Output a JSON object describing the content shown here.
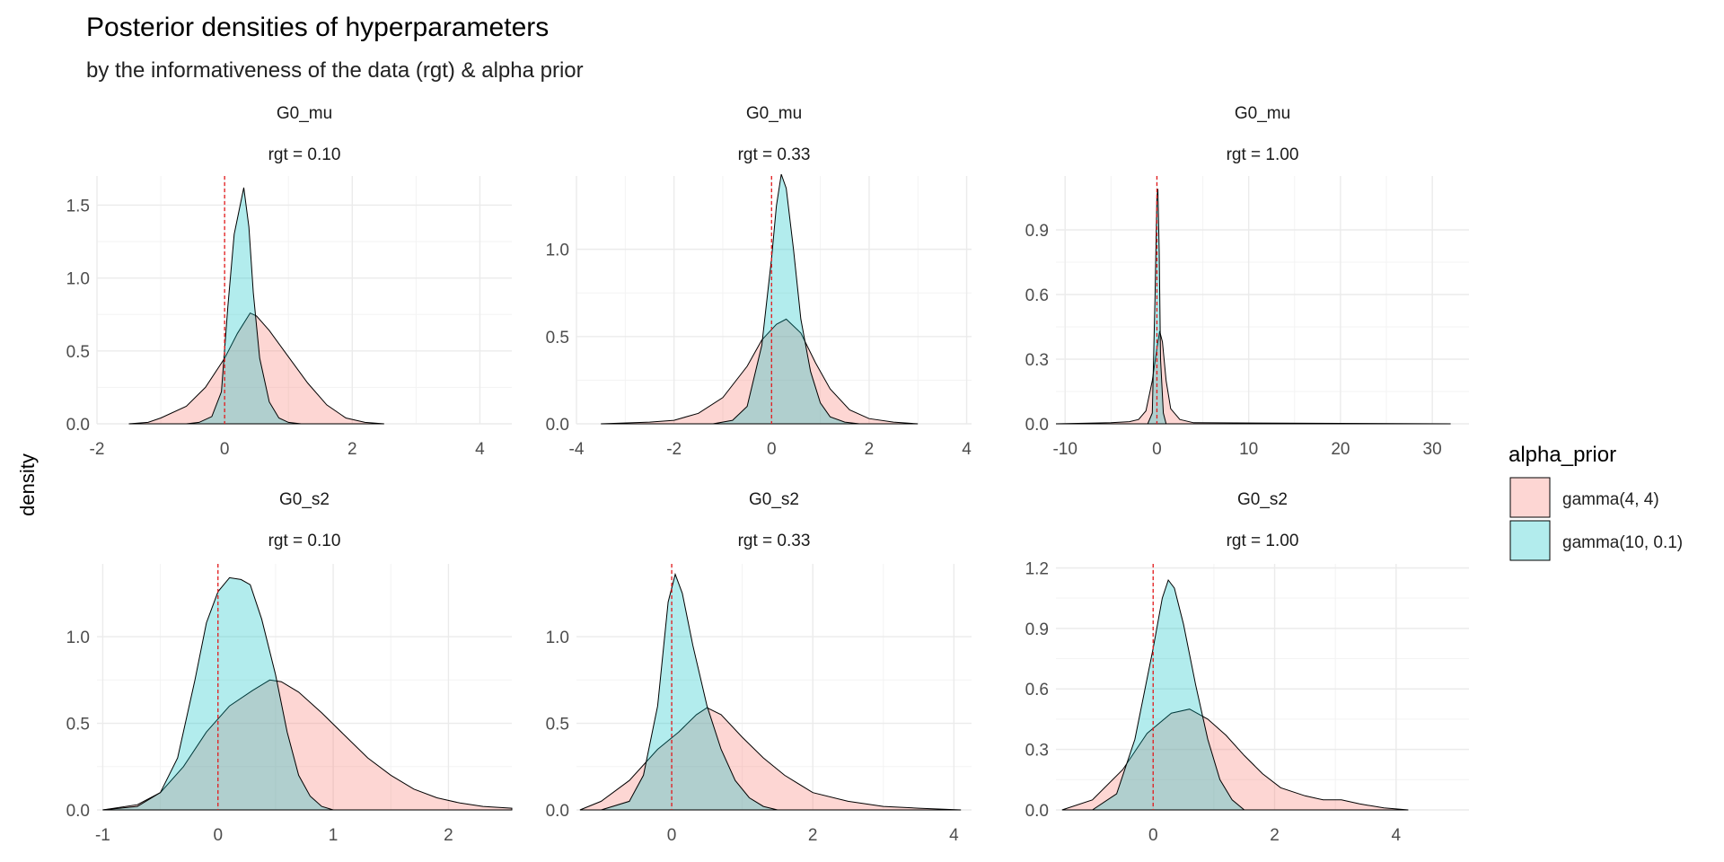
{
  "title": "Posterior densities of hyperparameters",
  "subtitle": "by the informativeness of the data (rgt) & alpha prior",
  "ylabel": "density",
  "legend": {
    "title": "alpha_prior",
    "placement": "right",
    "entries": [
      {
        "label": "gamma(4, 4)",
        "color": "#F8766D"
      },
      {
        "label": "gamma(10, 0.1)",
        "color": "#00BFC4"
      }
    ]
  },
  "colors": {
    "ref_line": "#E41A1C",
    "grid": "#EBEBEB",
    "outline": "#000000"
  },
  "chart_data": [
    {
      "type": "area",
      "facet": "G0_mu",
      "strip": "rgt = 0.10",
      "xlim": [
        -2,
        4.5
      ],
      "ylim": [
        0,
        1.7
      ],
      "xticks": [
        -2,
        0,
        2,
        4
      ],
      "yticks": [
        0.0,
        0.5,
        1.0,
        1.5
      ],
      "ref_x": 0,
      "grid": true,
      "series": [
        {
          "name": "gamma(4, 4)",
          "points": [
            [
              -1.5,
              0
            ],
            [
              -1.2,
              0.01
            ],
            [
              -1.0,
              0.04
            ],
            [
              -0.6,
              0.12
            ],
            [
              -0.3,
              0.25
            ],
            [
              0.0,
              0.45
            ],
            [
              0.2,
              0.62
            ],
            [
              0.4,
              0.76
            ],
            [
              0.5,
              0.74
            ],
            [
              0.7,
              0.64
            ],
            [
              1.0,
              0.46
            ],
            [
              1.3,
              0.28
            ],
            [
              1.6,
              0.13
            ],
            [
              1.9,
              0.04
            ],
            [
              2.2,
              0.01
            ],
            [
              2.5,
              0
            ]
          ]
        },
        {
          "name": "gamma(10, 0.1)",
          "points": [
            [
              -0.6,
              0
            ],
            [
              -0.4,
              0.01
            ],
            [
              -0.2,
              0.05
            ],
            [
              -0.05,
              0.22
            ],
            [
              0.05,
              0.8
            ],
            [
              0.15,
              1.3
            ],
            [
              0.22,
              1.45
            ],
            [
              0.3,
              1.62
            ],
            [
              0.38,
              1.35
            ],
            [
              0.45,
              0.9
            ],
            [
              0.55,
              0.45
            ],
            [
              0.7,
              0.15
            ],
            [
              0.85,
              0.04
            ],
            [
              1.0,
              0.01
            ],
            [
              1.2,
              0
            ]
          ]
        }
      ]
    },
    {
      "type": "area",
      "facet": "G0_mu",
      "strip": "rgt = 0.33",
      "xlim": [
        -4,
        4.1
      ],
      "ylim": [
        0,
        1.42
      ],
      "xticks": [
        -4,
        -2,
        0,
        2,
        4
      ],
      "yticks": [
        0.0,
        0.5,
        1.0
      ],
      "ref_x": 0,
      "grid": true,
      "series": [
        {
          "name": "gamma(4, 4)",
          "points": [
            [
              -3.5,
              0
            ],
            [
              -2.5,
              0.01
            ],
            [
              -2.0,
              0.02
            ],
            [
              -1.5,
              0.06
            ],
            [
              -1.0,
              0.15
            ],
            [
              -0.5,
              0.33
            ],
            [
              -0.2,
              0.48
            ],
            [
              0.1,
              0.57
            ],
            [
              0.3,
              0.6
            ],
            [
              0.6,
              0.52
            ],
            [
              0.9,
              0.35
            ],
            [
              1.2,
              0.2
            ],
            [
              1.6,
              0.08
            ],
            [
              2.0,
              0.03
            ],
            [
              2.5,
              0.01
            ],
            [
              3.0,
              0
            ]
          ]
        },
        {
          "name": "gamma(10, 0.1)",
          "points": [
            [
              -1.2,
              0
            ],
            [
              -0.8,
              0.02
            ],
            [
              -0.5,
              0.1
            ],
            [
              -0.2,
              0.45
            ],
            [
              0.0,
              0.95
            ],
            [
              0.1,
              1.25
            ],
            [
              0.2,
              1.43
            ],
            [
              0.3,
              1.35
            ],
            [
              0.45,
              1.0
            ],
            [
              0.6,
              0.6
            ],
            [
              0.8,
              0.3
            ],
            [
              1.0,
              0.12
            ],
            [
              1.2,
              0.04
            ],
            [
              1.5,
              0.01
            ],
            [
              1.8,
              0
            ]
          ]
        }
      ]
    },
    {
      "type": "area",
      "facet": "G0_mu",
      "strip": "rgt = 1.00",
      "xlim": [
        -11,
        34
      ],
      "ylim": [
        0,
        1.15
      ],
      "xticks": [
        -10,
        0,
        10,
        20,
        30
      ],
      "yticks": [
        0.0,
        0.3,
        0.6,
        0.9
      ],
      "ref_x": 0,
      "grid": true,
      "series": [
        {
          "name": "gamma(4, 4)",
          "points": [
            [
              -11,
              0
            ],
            [
              -5,
              0.005
            ],
            [
              -3,
              0.01
            ],
            [
              -2,
              0.02
            ],
            [
              -1.2,
              0.06
            ],
            [
              -0.5,
              0.2
            ],
            [
              0.0,
              0.35
            ],
            [
              0.3,
              0.43
            ],
            [
              0.6,
              0.38
            ],
            [
              1.0,
              0.2
            ],
            [
              1.5,
              0.07
            ],
            [
              2.5,
              0.02
            ],
            [
              4,
              0.005
            ],
            [
              32,
              0
            ]
          ]
        },
        {
          "name": "gamma(10, 0.1)",
          "points": [
            [
              -1.0,
              0
            ],
            [
              -0.5,
              0.05
            ],
            [
              -0.2,
              0.6
            ],
            [
              0.0,
              1.05
            ],
            [
              0.1,
              1.09
            ],
            [
              0.25,
              0.8
            ],
            [
              0.4,
              0.3
            ],
            [
              0.7,
              0.05
            ],
            [
              1.0,
              0
            ]
          ]
        }
      ]
    },
    {
      "type": "area",
      "facet": "G0_s2",
      "strip": "rgt = 0.10",
      "xlim": [
        -1.05,
        2.55
      ],
      "ylim": [
        0,
        1.42
      ],
      "xticks": [
        -1,
        0,
        1,
        2
      ],
      "yticks": [
        0.0,
        0.5,
        1.0
      ],
      "ref_x": 0,
      "grid": true,
      "series": [
        {
          "name": "gamma(4, 4)",
          "points": [
            [
              -1.0,
              0
            ],
            [
              -0.7,
              0.03
            ],
            [
              -0.5,
              0.1
            ],
            [
              -0.3,
              0.25
            ],
            [
              -0.1,
              0.45
            ],
            [
              0.1,
              0.6
            ],
            [
              0.3,
              0.69
            ],
            [
              0.45,
              0.75
            ],
            [
              0.55,
              0.74
            ],
            [
              0.7,
              0.68
            ],
            [
              0.9,
              0.56
            ],
            [
              1.1,
              0.43
            ],
            [
              1.3,
              0.3
            ],
            [
              1.5,
              0.2
            ],
            [
              1.7,
              0.12
            ],
            [
              1.9,
              0.07
            ],
            [
              2.1,
              0.04
            ],
            [
              2.3,
              0.02
            ],
            [
              2.55,
              0.01
            ]
          ]
        },
        {
          "name": "gamma(10, 0.1)",
          "points": [
            [
              -1.0,
              0
            ],
            [
              -0.7,
              0.02
            ],
            [
              -0.5,
              0.1
            ],
            [
              -0.35,
              0.3
            ],
            [
              -0.2,
              0.75
            ],
            [
              -0.1,
              1.08
            ],
            [
              0.0,
              1.26
            ],
            [
              0.1,
              1.34
            ],
            [
              0.2,
              1.33
            ],
            [
              0.28,
              1.3
            ],
            [
              0.38,
              1.1
            ],
            [
              0.5,
              0.78
            ],
            [
              0.6,
              0.45
            ],
            [
              0.7,
              0.2
            ],
            [
              0.8,
              0.08
            ],
            [
              0.9,
              0.02
            ],
            [
              1.0,
              0
            ]
          ]
        }
      ]
    },
    {
      "type": "area",
      "facet": "G0_s2",
      "strip": "rgt = 0.33",
      "xlim": [
        -1.35,
        4.25
      ],
      "ylim": [
        0,
        1.42
      ],
      "xticks": [
        0,
        2,
        4
      ],
      "yticks": [
        0.0,
        0.5,
        1.0
      ],
      "ref_x": 0,
      "grid": true,
      "series": [
        {
          "name": "gamma(4, 4)",
          "points": [
            [
              -1.3,
              0
            ],
            [
              -1.0,
              0.05
            ],
            [
              -0.6,
              0.17
            ],
            [
              -0.2,
              0.35
            ],
            [
              0.1,
              0.45
            ],
            [
              0.35,
              0.55
            ],
            [
              0.5,
              0.59
            ],
            [
              0.7,
              0.55
            ],
            [
              1.0,
              0.42
            ],
            [
              1.3,
              0.3
            ],
            [
              1.6,
              0.2
            ],
            [
              2.0,
              0.1
            ],
            [
              2.5,
              0.05
            ],
            [
              3.0,
              0.02
            ],
            [
              3.5,
              0.01
            ],
            [
              4.1,
              0
            ]
          ]
        },
        {
          "name": "gamma(10, 0.1)",
          "points": [
            [
              -1.0,
              0
            ],
            [
              -0.6,
              0.05
            ],
            [
              -0.4,
              0.2
            ],
            [
              -0.2,
              0.6
            ],
            [
              -0.05,
              1.2
            ],
            [
              0.05,
              1.36
            ],
            [
              0.15,
              1.25
            ],
            [
              0.3,
              0.95
            ],
            [
              0.5,
              0.6
            ],
            [
              0.7,
              0.35
            ],
            [
              0.9,
              0.17
            ],
            [
              1.1,
              0.07
            ],
            [
              1.3,
              0.02
            ],
            [
              1.5,
              0
            ]
          ]
        }
      ]
    },
    {
      "type": "area",
      "facet": "G0_s2",
      "strip": "rgt = 1.00",
      "xlim": [
        -1.6,
        5.2
      ],
      "ylim": [
        0,
        1.22
      ],
      "xticks": [
        0,
        2,
        4
      ],
      "yticks": [
        0.0,
        0.3,
        0.6,
        0.9,
        1.2
      ],
      "ref_x": 0,
      "grid": true,
      "series": [
        {
          "name": "gamma(4, 4)",
          "points": [
            [
              -1.5,
              0
            ],
            [
              -1.0,
              0.05
            ],
            [
              -0.5,
              0.2
            ],
            [
              -0.1,
              0.38
            ],
            [
              0.3,
              0.48
            ],
            [
              0.6,
              0.5
            ],
            [
              0.9,
              0.45
            ],
            [
              1.2,
              0.37
            ],
            [
              1.5,
              0.27
            ],
            [
              1.8,
              0.18
            ],
            [
              2.1,
              0.11
            ],
            [
              2.5,
              0.07
            ],
            [
              2.8,
              0.05
            ],
            [
              3.1,
              0.05
            ],
            [
              3.4,
              0.03
            ],
            [
              3.8,
              0.01
            ],
            [
              4.2,
              0
            ]
          ]
        },
        {
          "name": "gamma(10, 0.1)",
          "points": [
            [
              -1.0,
              0
            ],
            [
              -0.6,
              0.08
            ],
            [
              -0.3,
              0.35
            ],
            [
              0.0,
              0.8
            ],
            [
              0.15,
              1.05
            ],
            [
              0.25,
              1.14
            ],
            [
              0.35,
              1.1
            ],
            [
              0.5,
              0.92
            ],
            [
              0.7,
              0.62
            ],
            [
              0.9,
              0.35
            ],
            [
              1.1,
              0.15
            ],
            [
              1.3,
              0.05
            ],
            [
              1.5,
              0
            ]
          ]
        }
      ]
    }
  ]
}
